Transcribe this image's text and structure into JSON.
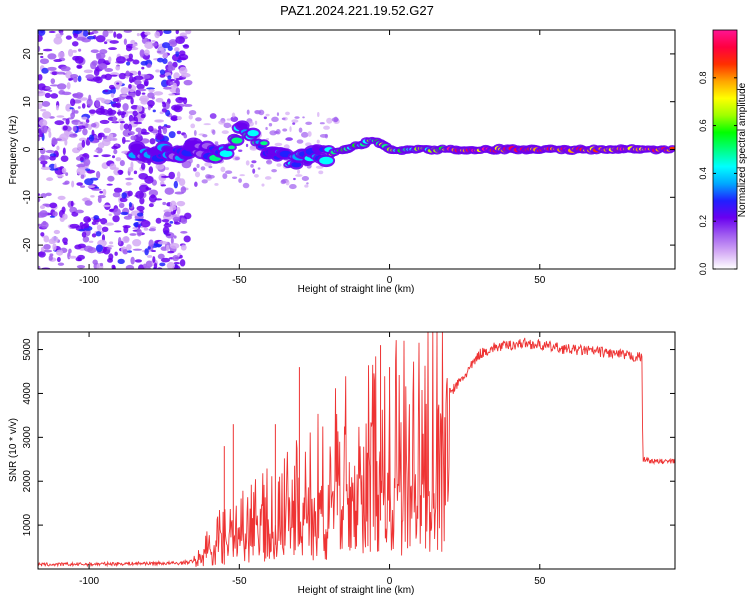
{
  "title": "PAZ1.2024.221.19.52.G27",
  "chart_data": [
    {
      "type": "heatmap",
      "title": "PAZ1.2024.221.19.52.G27",
      "xlabel": "Height of straight line (km)",
      "ylabel": "Frequency (Hz)",
      "xlim": [
        -117,
        95
      ],
      "ylim": [
        -25,
        25
      ],
      "x_ticks": [
        -100,
        -50,
        0,
        50
      ],
      "y_ticks": [
        -20,
        -10,
        0,
        10,
        20
      ],
      "colorbar": {
        "label": "Normalized spectral amplitude",
        "range": [
          0,
          1
        ],
        "ticks": [
          0.0,
          0.2,
          0.4,
          0.6,
          0.8
        ],
        "colormap": [
          "#ffffff",
          "#d4aaf5",
          "#a05cf0",
          "#6a00f0",
          "#2020ff",
          "#00a8ff",
          "#00ffff",
          "#00ff7f",
          "#00ff00",
          "#a0ff00",
          "#ffff00",
          "#ffa500",
          "#ff3000",
          "#ff0040",
          "#ff1493"
        ]
      },
      "ridge": {
        "x": [
          -85,
          -75,
          -65,
          -55,
          -50,
          -45,
          -40,
          -35,
          -30,
          -25,
          -20,
          -15,
          -10,
          -5,
          0,
          5,
          10,
          20,
          30,
          40,
          50,
          60,
          70,
          80,
          90,
          95
        ],
        "y": [
          0,
          -1,
          0,
          -1,
          4,
          2,
          0,
          -2,
          -2,
          -1,
          -1,
          0,
          1,
          2,
          0,
          0,
          0,
          0,
          0,
          0,
          0,
          0,
          0,
          0,
          0,
          0
        ]
      }
    },
    {
      "type": "line",
      "xlabel": "Height of straight line (km)",
      "ylabel": "SNR (10 * v/v)",
      "xlim": [
        -117,
        95
      ],
      "ylim": [
        0,
        5400
      ],
      "x_ticks": [
        -100,
        -50,
        0,
        50
      ],
      "y_ticks": [
        1000,
        2000,
        3000,
        4000,
        5000
      ],
      "color": "#ee3333",
      "envelope": {
        "x": [
          -117,
          -100,
          -80,
          -70,
          -65,
          -60,
          -55,
          -50,
          -45,
          -40,
          -35,
          -30,
          -25,
          -20,
          -15,
          -10,
          -5,
          0,
          5,
          10,
          15,
          20,
          25,
          30,
          35,
          40,
          45,
          50,
          55,
          60,
          65,
          70,
          75,
          80,
          84,
          84.3,
          88,
          95
        ],
        "y": [
          100,
          110,
          130,
          130,
          180,
          600,
          900,
          1100,
          1200,
          1300,
          1500,
          1600,
          1900,
          2100,
          2300,
          2500,
          2800,
          2700,
          3000,
          3200,
          3600,
          4000,
          4400,
          4900,
          5050,
          5100,
          5150,
          5100,
          5050,
          5000,
          4980,
          4950,
          4900,
          4850,
          4820,
          2500,
          2450,
          2450
        ]
      },
      "spikes": [
        {
          "x": -55,
          "y": 2800
        },
        {
          "x": -52,
          "y": 3300
        },
        {
          "x": -38,
          "y": 3300
        },
        {
          "x": -30,
          "y": 4600
        },
        {
          "x": -3,
          "y": 5100
        },
        {
          "x": 0,
          "y": 4600
        }
      ]
    }
  ]
}
